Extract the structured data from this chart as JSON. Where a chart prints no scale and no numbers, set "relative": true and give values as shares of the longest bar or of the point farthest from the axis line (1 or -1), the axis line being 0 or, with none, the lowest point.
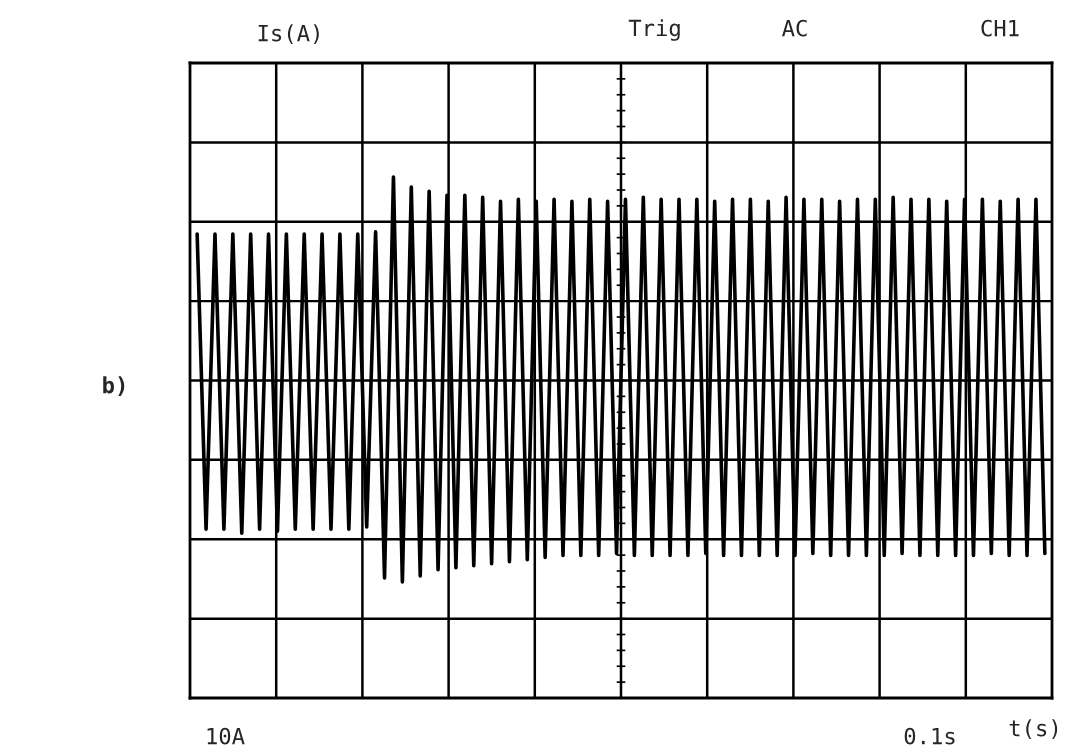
{
  "chart_data": {
    "type": "line",
    "relative": true,
    "grid": true,
    "annotations": [
      "Is(A)",
      "Trig",
      "AC",
      "CH1",
      "10A",
      "0.1s",
      "t(s)",
      "b)"
    ],
    "categories": [
      null,
      null,
      null,
      null,
      null,
      null,
      null,
      null,
      null,
      null,
      null,
      null,
      null,
      null,
      null,
      null,
      null,
      null,
      null,
      null,
      null,
      null,
      null,
      null,
      null,
      null,
      null,
      null,
      null,
      null,
      null,
      null,
      null,
      null,
      null,
      null,
      null,
      null,
      null,
      null,
      null,
      null,
      null,
      null,
      null,
      null,
      null,
      null,
      null,
      null,
      null,
      null,
      null,
      null,
      null,
      null,
      null,
      null,
      null,
      null,
      null,
      null,
      null,
      null,
      null,
      null,
      null,
      null,
      null,
      null,
      null,
      null,
      null,
      null,
      null,
      null,
      null,
      null,
      null,
      null,
      null,
      null,
      null,
      null,
      null,
      null,
      null,
      null,
      null,
      null,
      null,
      null,
      null,
      null,
      null,
      null
    ],
    "series": [
      {
        "color": "#000000",
        "values": [
          0.72,
          -0.73,
          0.72,
          -0.73,
          0.72,
          -0.75,
          0.72,
          -0.73,
          0.72,
          -0.74,
          0.72,
          -0.73,
          0.72,
          -0.73,
          0.72,
          -0.73,
          0.72,
          -0.73,
          0.72,
          -0.72,
          0.73,
          -0.97,
          1.0,
          -0.99,
          0.95,
          -0.96,
          0.93,
          -0.93,
          0.91,
          -0.92,
          0.91,
          -0.91,
          0.9,
          -0.9,
          0.88,
          -0.89,
          0.89,
          -0.88,
          0.88,
          -0.87,
          0.89,
          -0.86,
          0.88,
          -0.86,
          0.89,
          -0.86,
          0.88,
          -0.85,
          0.89,
          -0.86,
          0.9,
          -0.86,
          0.89,
          -0.86,
          0.89,
          -0.86,
          0.89,
          -0.85,
          0.88,
          -0.86,
          0.89,
          -0.86,
          0.89,
          -0.86,
          0.88,
          -0.86,
          0.9,
          -0.86,
          0.89,
          -0.85,
          0.89,
          -0.86,
          0.88,
          -0.86,
          0.89,
          -0.86,
          0.89,
          -0.86,
          0.9,
          -0.85,
          0.89,
          -0.86,
          0.89,
          -0.86,
          0.88,
          -0.86,
          0.89,
          -0.86,
          0.89,
          -0.85,
          0.88,
          -0.86,
          0.89,
          -0.86,
          0.89,
          -0.85
        ]
      }
    ]
  }
}
